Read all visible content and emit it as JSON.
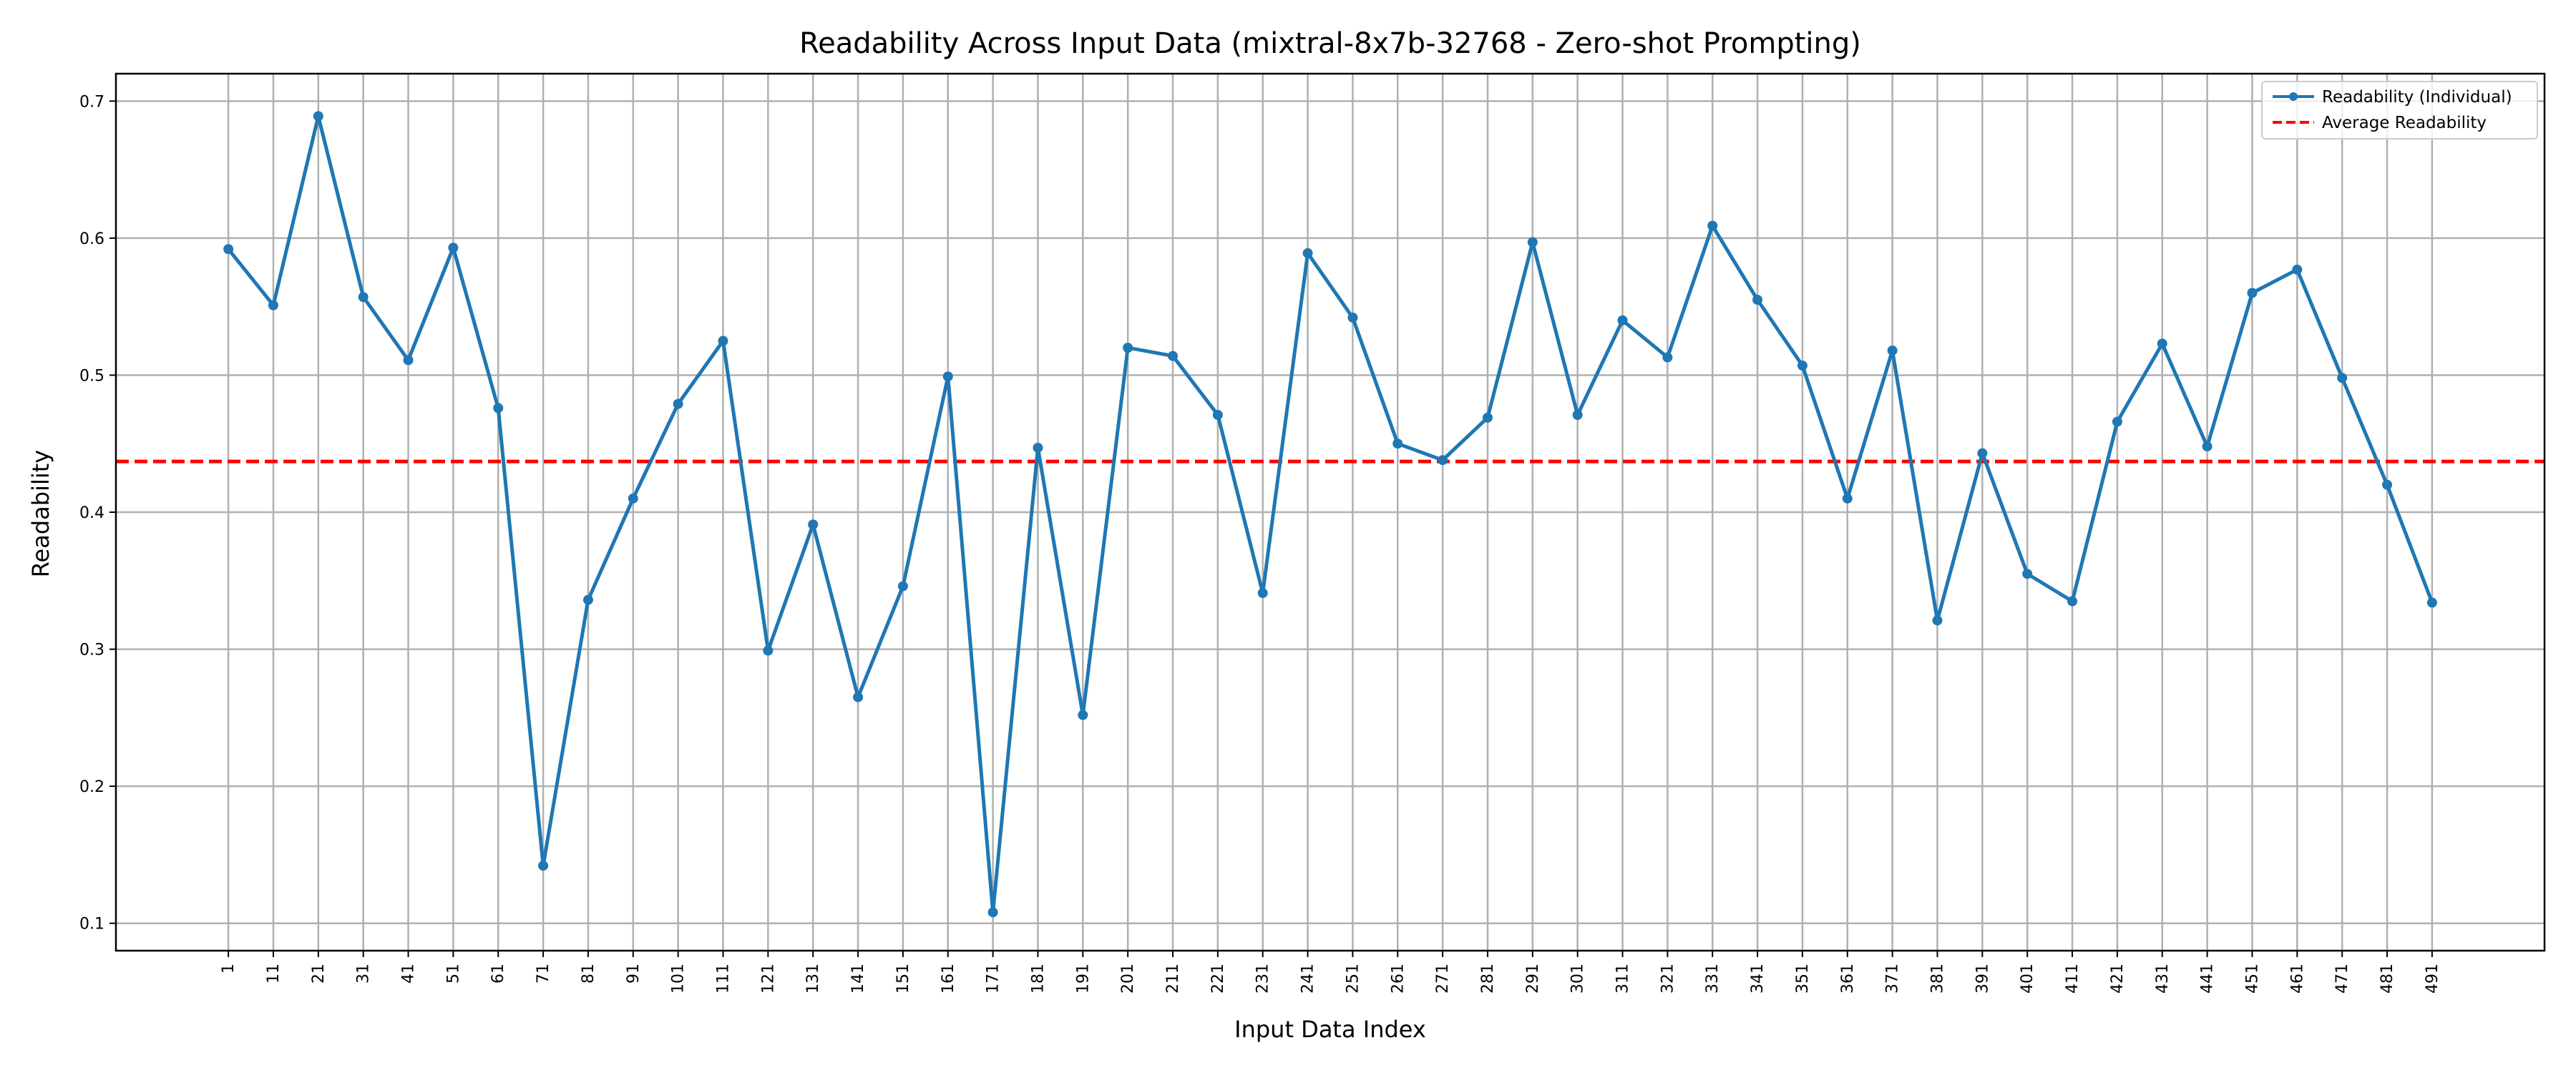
{
  "chart_data": {
    "type": "line",
    "title": "Readability Across Input Data (mixtral-8x7b-32768 - Zero-shot Prompting)",
    "xlabel": "Input Data Index",
    "ylabel": "Readability",
    "x": [
      1,
      11,
      21,
      31,
      41,
      51,
      61,
      71,
      81,
      91,
      101,
      111,
      121,
      131,
      141,
      151,
      161,
      171,
      181,
      191,
      201,
      211,
      221,
      231,
      241,
      251,
      261,
      271,
      281,
      291,
      301,
      311,
      321,
      331,
      341,
      351,
      361,
      371,
      381,
      391,
      401,
      411,
      421,
      431,
      441,
      451,
      461,
      471,
      481,
      491
    ],
    "xticks": [
      1,
      11,
      21,
      31,
      41,
      51,
      61,
      71,
      81,
      91,
      101,
      111,
      121,
      131,
      141,
      151,
      161,
      171,
      181,
      191,
      201,
      211,
      221,
      231,
      241,
      251,
      261,
      271,
      281,
      291,
      301,
      311,
      321,
      331,
      341,
      351,
      361,
      371,
      381,
      391,
      401,
      411,
      421,
      431,
      441,
      451,
      461,
      471,
      481,
      491
    ],
    "yticks": [
      0.1,
      0.2,
      0.3,
      0.4,
      0.5,
      0.6,
      0.7
    ],
    "ylim": [
      0.08,
      0.72
    ],
    "xlim": [
      -24,
      516
    ],
    "series": [
      {
        "name": "Readability (Individual)",
        "color": "#1f77b4",
        "style": "solid-with-markers",
        "values": [
          0.592,
          0.551,
          0.689,
          0.557,
          0.511,
          0.593,
          0.476,
          0.142,
          0.336,
          0.41,
          0.479,
          0.525,
          0.299,
          0.391,
          0.265,
          0.346,
          0.499,
          0.108,
          0.447,
          0.252,
          0.52,
          0.514,
          0.471,
          0.341,
          0.589,
          0.542,
          0.45,
          0.438,
          0.469,
          0.597,
          0.471,
          0.54,
          0.513,
          0.609,
          0.555,
          0.507,
          0.41,
          0.518,
          0.321,
          0.443,
          0.355,
          0.335,
          0.466,
          0.523,
          0.448,
          0.56,
          0.577,
          0.498,
          0.42,
          0.334
        ]
      },
      {
        "name": "Average Readability",
        "color": "#ff0000",
        "style": "dashed",
        "value": 0.437
      }
    ],
    "grid": true,
    "legend_position": "top-right"
  }
}
